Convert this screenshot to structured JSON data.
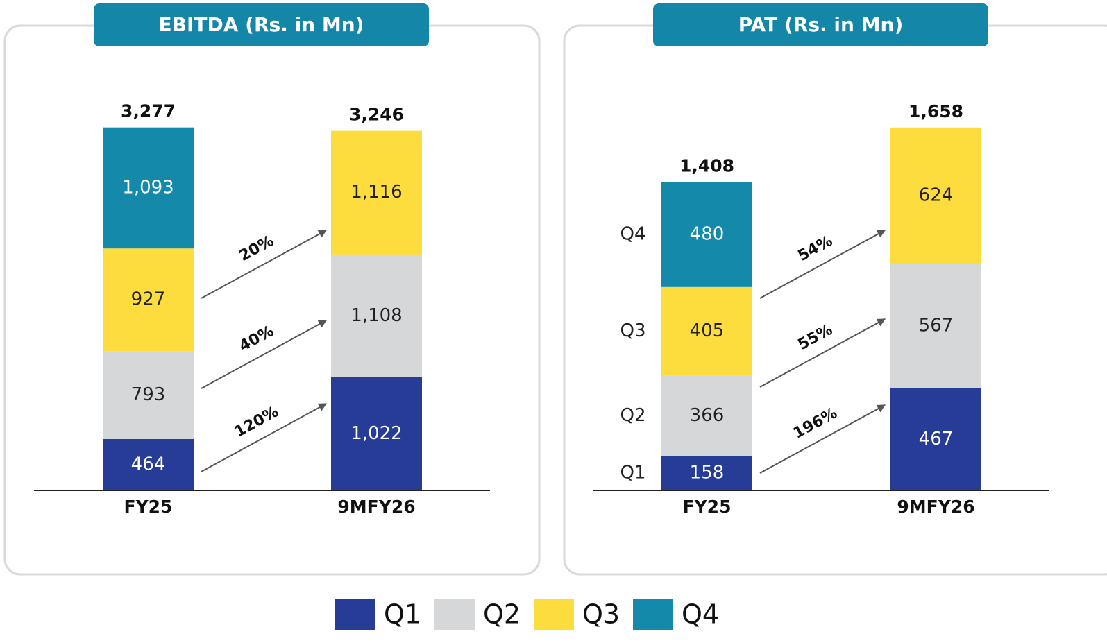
{
  "chart_data": [
    {
      "type": "stacked-bar",
      "title": "EBITDA (Rs. in Mn)",
      "categories": [
        "FY25",
        "9MFY26"
      ],
      "series": [
        {
          "name": "Q1",
          "color": "#263c96",
          "values": [
            464,
            1022
          ],
          "value_labels": [
            "464",
            "1,022"
          ]
        },
        {
          "name": "Q2",
          "color": "#d6d7d9",
          "values": [
            793,
            1108
          ],
          "value_labels": [
            "793",
            "1,108"
          ]
        },
        {
          "name": "Q3",
          "color": "#fddc3e",
          "values": [
            927,
            1116
          ],
          "value_labels": [
            "927",
            "1,116"
          ]
        },
        {
          "name": "Q4",
          "color": "#1589a9",
          "values": [
            1093,
            null
          ],
          "value_labels": [
            "1,093",
            null
          ]
        }
      ],
      "totals": {
        "values": [
          3277,
          3246
        ],
        "value_labels": [
          "3,277",
          "3,246"
        ]
      },
      "annotations": [
        "120%",
        "40%",
        "20%"
      ],
      "ylim": [
        0,
        3300
      ],
      "side_labels": false
    },
    {
      "type": "stacked-bar",
      "title": "PAT (Rs. in Mn)",
      "categories": [
        "FY25",
        "9MFY26"
      ],
      "series": [
        {
          "name": "Q1",
          "color": "#263c96",
          "values": [
            158,
            467
          ]
        },
        {
          "name": "Q2",
          "color": "#d6d7d9",
          "values": [
            366,
            567
          ]
        },
        {
          "name": "Q3",
          "color": "#fddc3e",
          "values": [
            405,
            624
          ]
        },
        {
          "name": "Q4",
          "color": "#1589a9",
          "values": [
            480,
            null
          ]
        }
      ],
      "totals": {
        "values": [
          1408,
          1658
        ],
        "value_labels": [
          "1,408",
          "1,658"
        ]
      },
      "annotations": [
        "196%",
        "55%",
        "54%"
      ],
      "ylim": [
        0,
        1670
      ],
      "side_labels": true
    }
  ]
}
